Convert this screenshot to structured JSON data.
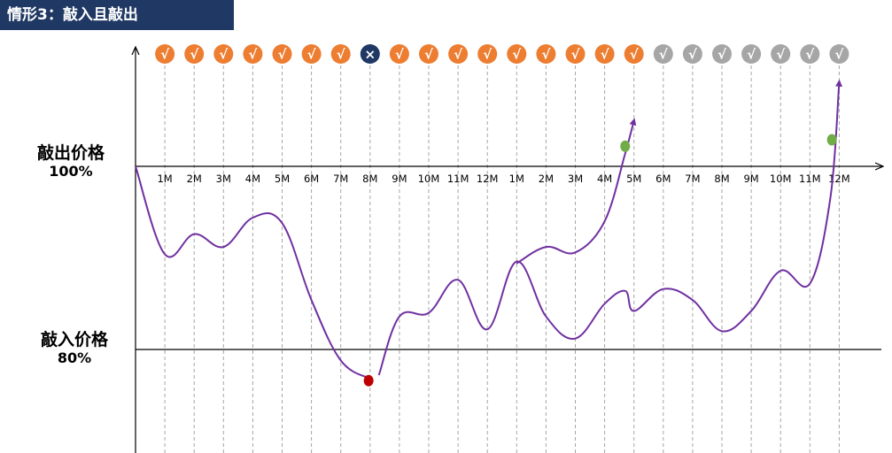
{
  "title": "情形3：敲入且敲出",
  "levels": {
    "knockout": {
      "name": "敲出价格",
      "value": "100%"
    },
    "knockin": {
      "name": "敲入价格",
      "value": "80%"
    }
  },
  "colors": {
    "pass": "#ed7d31",
    "fail": "#1f3864",
    "pending": "#a6a6a6",
    "path": "#7030a0",
    "knockin_dot": "#c00000",
    "knockout_dot": "#70ad47",
    "title_bg": "#1f3864"
  },
  "chart_data": {
    "type": "line",
    "title": "情形3：敲入且敲出",
    "x_tick_labels": [
      "1M",
      "2M",
      "3M",
      "4M",
      "5M",
      "6M",
      "7M",
      "8M",
      "9M",
      "10M",
      "11M",
      "12M",
      "1M",
      "2M",
      "3M",
      "4M",
      "5M",
      "6M",
      "7M",
      "8M",
      "9M",
      "10M",
      "11M",
      "12M"
    ],
    "observation_marks": [
      "√",
      "√",
      "√",
      "√",
      "√",
      "√",
      "√",
      "×",
      "√",
      "√",
      "√",
      "√",
      "√",
      "√",
      "√",
      "√",
      "√",
      "√",
      "√",
      "√",
      "√",
      "√",
      "√",
      "√"
    ],
    "observation_status": [
      "pass",
      "pass",
      "pass",
      "pass",
      "pass",
      "pass",
      "pass",
      "fail",
      "pass",
      "pass",
      "pass",
      "pass",
      "pass",
      "pass",
      "pass",
      "pass",
      "pass",
      "pending",
      "pending",
      "pending",
      "pending",
      "pending",
      "pending",
      "pending"
    ],
    "ylim": [
      75,
      110
    ],
    "reference_lines": [
      {
        "label": "敲出价格",
        "value": 100
      },
      {
        "label": "敲入价格",
        "value": 80
      }
    ],
    "series": [
      {
        "x": [
          0,
          1,
          2,
          3,
          4,
          5,
          6,
          7,
          8
        ],
        "y": [
          100,
          90.4,
          92.6,
          91.2,
          94.4,
          93.8,
          85.4,
          78.8,
          76.8
        ]
      },
      {
        "x": [
          8.3,
          9,
          10,
          11,
          12,
          13,
          14,
          15,
          16,
          16.7,
          17,
          18,
          19,
          20,
          21,
          22,
          23,
          23.7,
          24
        ],
        "y": [
          77.2,
          83.6,
          84.0,
          87.6,
          82.2,
          89.6,
          83.6,
          81.2,
          85.0,
          86.4,
          84.2,
          86.6,
          85.4,
          82.0,
          84.2,
          88.6,
          87.2,
          96.6,
          109.2
        ]
      },
      {
        "x": [
          13,
          14,
          15,
          16,
          16.7,
          17
        ],
        "y": [
          89.4,
          91.2,
          90.6,
          94.0,
          101.4,
          105.0
        ]
      }
    ],
    "knock_in_point": {
      "x": 7.95,
      "y": 76.6
    },
    "knock_out_points": [
      {
        "x": 16.7,
        "y": 102.2
      },
      {
        "x": 23.75,
        "y": 102.9
      }
    ]
  }
}
